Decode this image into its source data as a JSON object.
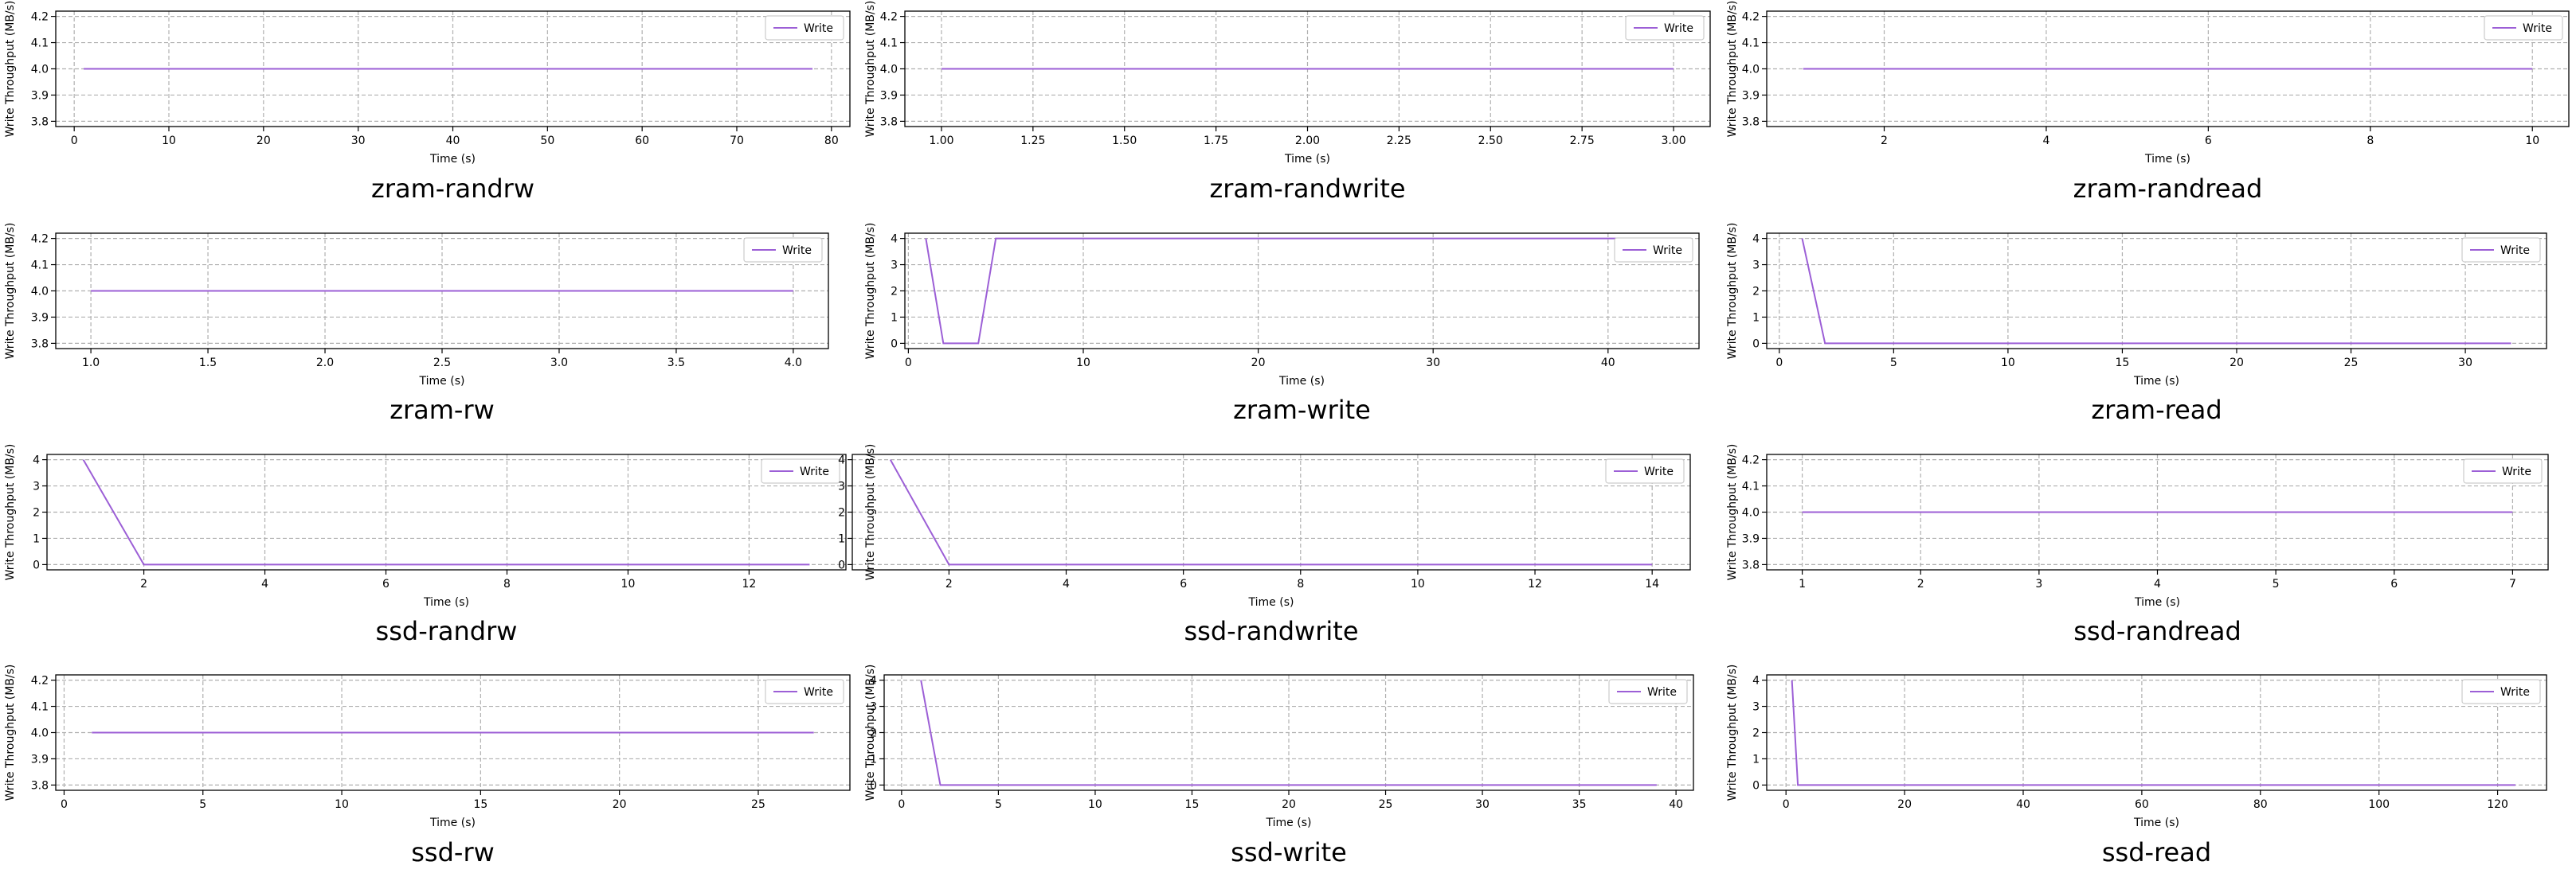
{
  "chart_data": [
    {
      "type": "line",
      "title": "zram-randrw",
      "xlabel": "Time (s)",
      "ylabel": "Write Throughput (MB/s)",
      "xlim": [
        -1.95,
        81.95
      ],
      "ylim": [
        3.78,
        4.22
      ],
      "xticks": [
        0,
        10,
        20,
        30,
        40,
        50,
        60,
        70,
        80
      ],
      "xtick_labels": [
        "0",
        "10",
        "20",
        "30",
        "40",
        "50",
        "60",
        "70",
        "80"
      ],
      "yticks": [
        3.8,
        3.9,
        4.0,
        4.1,
        4.2
      ],
      "ytick_labels": [
        "3.8",
        "3.9",
        "4.0",
        "4.1",
        "4.2"
      ],
      "grid": true,
      "legend": "top-right",
      "color": "#9c5fd6",
      "series": [
        {
          "name": "Write",
          "x": [
            1,
            78
          ],
          "y": [
            4.0,
            4.0
          ]
        }
      ]
    },
    {
      "type": "line",
      "title": "zram-randwrite",
      "xlabel": "Time (s)",
      "ylabel": "Write Throughput (MB/s)",
      "xlim": [
        0.9,
        3.1
      ],
      "ylim": [
        3.78,
        4.22
      ],
      "xticks": [
        1.0,
        1.25,
        1.5,
        1.75,
        2.0,
        2.25,
        2.5,
        2.75,
        3.0
      ],
      "xtick_labels": [
        "1.00",
        "1.25",
        "1.50",
        "1.75",
        "2.00",
        "2.25",
        "2.50",
        "2.75",
        "3.00"
      ],
      "yticks": [
        3.8,
        3.9,
        4.0,
        4.1,
        4.2
      ],
      "ytick_labels": [
        "3.8",
        "3.9",
        "4.0",
        "4.1",
        "4.2"
      ],
      "grid": true,
      "legend": "top-right",
      "color": "#9c5fd6",
      "series": [
        {
          "name": "Write",
          "x": [
            1,
            3
          ],
          "y": [
            4.0,
            4.0
          ]
        }
      ]
    },
    {
      "type": "line",
      "title": "zram-randread",
      "xlabel": "Time (s)",
      "ylabel": "Write Throughput (MB/s)",
      "xlim": [
        0.55,
        10.45
      ],
      "ylim": [
        3.78,
        4.22
      ],
      "xticks": [
        2,
        4,
        6,
        8,
        10
      ],
      "xtick_labels": [
        "2",
        "4",
        "6",
        "8",
        "10"
      ],
      "yticks": [
        3.8,
        3.9,
        4.0,
        4.1,
        4.2
      ],
      "ytick_labels": [
        "3.8",
        "3.9",
        "4.0",
        "4.1",
        "4.2"
      ],
      "grid": true,
      "legend": "top-right",
      "color": "#9c5fd6",
      "series": [
        {
          "name": "Write",
          "x": [
            1,
            10
          ],
          "y": [
            4.0,
            4.0
          ]
        }
      ]
    },
    {
      "type": "line",
      "title": "zram-rw",
      "xlabel": "Time (s)",
      "ylabel": "Write Throughput (MB/s)",
      "xlim": [
        0.85,
        4.15
      ],
      "ylim": [
        3.78,
        4.22
      ],
      "xticks": [
        1.0,
        1.5,
        2.0,
        2.5,
        3.0,
        3.5,
        4.0
      ],
      "xtick_labels": [
        "1.0",
        "1.5",
        "2.0",
        "2.5",
        "3.0",
        "3.5",
        "4.0"
      ],
      "yticks": [
        3.8,
        3.9,
        4.0,
        4.1,
        4.2
      ],
      "ytick_labels": [
        "3.8",
        "3.9",
        "4.0",
        "4.1",
        "4.2"
      ],
      "grid": true,
      "legend": "top-right",
      "color": "#9c5fd6",
      "series": [
        {
          "name": "Write",
          "x": [
            1,
            4
          ],
          "y": [
            4.0,
            4.0
          ]
        }
      ]
    },
    {
      "type": "line",
      "title": "zram-write",
      "xlabel": "Time (s)",
      "ylabel": "Write Throughput (MB/s)",
      "xlim": [
        -0.2,
        45.2
      ],
      "ylim": [
        -0.2,
        4.2
      ],
      "xticks": [
        0,
        10,
        20,
        30,
        40
      ],
      "xtick_labels": [
        "0",
        "10",
        "20",
        "30",
        "40"
      ],
      "yticks": [
        0,
        1,
        2,
        3,
        4
      ],
      "ytick_labels": [
        "0",
        "1",
        "2",
        "3",
        "4"
      ],
      "grid": true,
      "legend": "top-right",
      "color": "#9c5fd6",
      "series": [
        {
          "name": "Write",
          "x": [
            1,
            2,
            4,
            5,
            43
          ],
          "y": [
            4,
            0,
            0,
            4,
            4
          ]
        }
      ]
    },
    {
      "type": "line",
      "title": "zram-read",
      "xlabel": "Time (s)",
      "ylabel": "Write Throughput (MB/s)",
      "xlim": [
        -0.55,
        33.55
      ],
      "ylim": [
        -0.2,
        4.2
      ],
      "xticks": [
        0,
        5,
        10,
        15,
        20,
        25,
        30
      ],
      "xtick_labels": [
        "0",
        "5",
        "10",
        "15",
        "20",
        "25",
        "30"
      ],
      "yticks": [
        0,
        1,
        2,
        3,
        4
      ],
      "ytick_labels": [
        "0",
        "1",
        "2",
        "3",
        "4"
      ],
      "grid": true,
      "legend": "top-right",
      "color": "#9c5fd6",
      "series": [
        {
          "name": "Write",
          "x": [
            1,
            2,
            32
          ],
          "y": [
            4,
            0,
            0
          ]
        }
      ]
    },
    {
      "type": "line",
      "title": "ssd-randrw",
      "xlabel": "Time (s)",
      "ylabel": "Write Throughput (MB/s)",
      "xlim": [
        0.4,
        13.6
      ],
      "ylim": [
        -0.2,
        4.2
      ],
      "xticks": [
        2,
        4,
        6,
        8,
        10,
        12
      ],
      "xtick_labels": [
        "2",
        "4",
        "6",
        "8",
        "10",
        "12"
      ],
      "yticks": [
        0,
        1,
        2,
        3,
        4
      ],
      "ytick_labels": [
        "0",
        "1",
        "2",
        "3",
        "4"
      ],
      "grid": true,
      "legend": "top-right",
      "color": "#9c5fd6",
      "series": [
        {
          "name": "Write",
          "x": [
            1,
            2,
            13
          ],
          "y": [
            4,
            0,
            0
          ]
        }
      ]
    },
    {
      "type": "line",
      "title": "ssd-randwrite",
      "xlabel": "Time (s)",
      "ylabel": "Write Throughput (MB/s)",
      "xlim": [
        0.35,
        14.65
      ],
      "ylim": [
        -0.2,
        4.2
      ],
      "xticks": [
        2,
        4,
        6,
        8,
        10,
        12,
        14
      ],
      "xtick_labels": [
        "2",
        "4",
        "6",
        "8",
        "10",
        "12",
        "14"
      ],
      "yticks": [
        0,
        1,
        2,
        3,
        4
      ],
      "ytick_labels": [
        "0",
        "1",
        "2",
        "3",
        "4"
      ],
      "grid": true,
      "legend": "top-right",
      "color": "#9c5fd6",
      "series": [
        {
          "name": "Write",
          "x": [
            1,
            2,
            14
          ],
          "y": [
            4,
            0,
            0
          ]
        }
      ]
    },
    {
      "type": "line",
      "title": "ssd-randread",
      "xlabel": "Time (s)",
      "ylabel": "Write Throughput (MB/s)",
      "xlim": [
        0.7,
        7.3
      ],
      "ylim": [
        3.78,
        4.22
      ],
      "xticks": [
        1,
        2,
        3,
        4,
        5,
        6,
        7
      ],
      "xtick_labels": [
        "1",
        "2",
        "3",
        "4",
        "5",
        "6",
        "7"
      ],
      "yticks": [
        3.8,
        3.9,
        4.0,
        4.1,
        4.2
      ],
      "ytick_labels": [
        "3.8",
        "3.9",
        "4.0",
        "4.1",
        "4.2"
      ],
      "grid": true,
      "legend": "top-right",
      "color": "#9c5fd6",
      "series": [
        {
          "name": "Write",
          "x": [
            1,
            7
          ],
          "y": [
            4.0,
            4.0
          ]
        }
      ]
    },
    {
      "type": "line",
      "title": "ssd-rw",
      "xlabel": "Time (s)",
      "ylabel": "Write Throughput (MB/s)",
      "xlim": [
        -0.3,
        28.3
      ],
      "ylim": [
        3.78,
        4.22
      ],
      "xticks": [
        0,
        5,
        10,
        15,
        20,
        25
      ],
      "xtick_labels": [
        "0",
        "5",
        "10",
        "15",
        "20",
        "25"
      ],
      "yticks": [
        3.8,
        3.9,
        4.0,
        4.1,
        4.2
      ],
      "ytick_labels": [
        "3.8",
        "3.9",
        "4.0",
        "4.1",
        "4.2"
      ],
      "grid": true,
      "legend": "top-right",
      "color": "#9c5fd6",
      "series": [
        {
          "name": "Write",
          "x": [
            1,
            27
          ],
          "y": [
            4.0,
            4.0
          ]
        }
      ]
    },
    {
      "type": "line",
      "title": "ssd-write",
      "xlabel": "Time (s)",
      "ylabel": "Write Throughput (MB/s)",
      "xlim": [
        -0.9,
        40.9
      ],
      "ylim": [
        -0.2,
        4.2
      ],
      "xticks": [
        0,
        5,
        10,
        15,
        20,
        25,
        30,
        35,
        40
      ],
      "xtick_labels": [
        "0",
        "5",
        "10",
        "15",
        "20",
        "25",
        "30",
        "35",
        "40"
      ],
      "yticks": [
        0,
        1,
        2,
        3,
        4
      ],
      "ytick_labels": [
        "0",
        "1",
        "2",
        "3",
        "4"
      ],
      "grid": true,
      "legend": "top-right",
      "color": "#9c5fd6",
      "series": [
        {
          "name": "Write",
          "x": [
            1,
            2,
            39
          ],
          "y": [
            4,
            0,
            0
          ]
        }
      ]
    },
    {
      "type": "line",
      "title": "ssd-read",
      "xlabel": "Time (s)",
      "ylabel": "Write Throughput (MB/s)",
      "xlim": [
        -3.25,
        128.25
      ],
      "ylim": [
        -0.2,
        4.2
      ],
      "xticks": [
        0,
        20,
        40,
        60,
        80,
        100,
        120
      ],
      "xtick_labels": [
        "0",
        "20",
        "40",
        "60",
        "80",
        "100",
        "120"
      ],
      "yticks": [
        0,
        1,
        2,
        3,
        4
      ],
      "ytick_labels": [
        "0",
        "1",
        "2",
        "3",
        "4"
      ],
      "grid": true,
      "legend": "top-right",
      "color": "#9c5fd6",
      "series": [
        {
          "name": "Write",
          "x": [
            1,
            2,
            123
          ],
          "y": [
            4,
            0,
            0
          ]
        }
      ]
    }
  ]
}
